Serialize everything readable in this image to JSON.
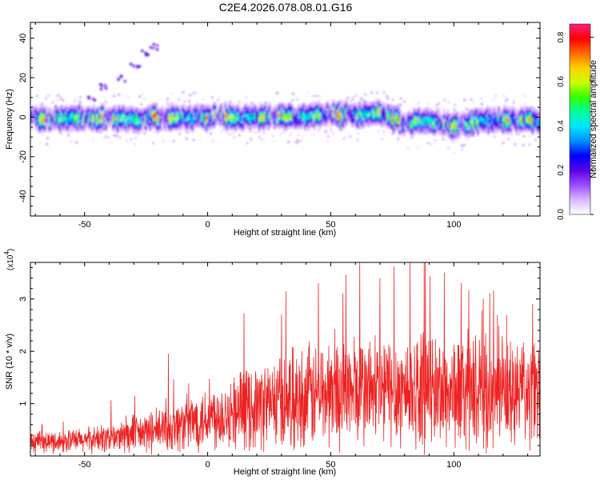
{
  "title": "C2E4.2026.078.08.01.G16",
  "chart_data": [
    {
      "type": "heatmap",
      "xlabel": "Height of straight line (km)",
      "ylabel": "Frequency (Hz)",
      "xlim": [
        -72,
        135
      ],
      "ylim": [
        -50,
        48
      ],
      "xticks": [
        -50,
        0,
        50,
        100
      ],
      "yticks": [
        -40,
        -20,
        0,
        20,
        40
      ],
      "colorbar": {
        "label": "Normalized spectral amplitude",
        "range": [
          0,
          0.86
        ],
        "ticks": [
          "0.0",
          "0.2",
          "0.4",
          "0.6",
          "0.8"
        ],
        "colormap": [
          "#ffffff",
          "#d8b8ff",
          "#9c4dff",
          "#5a00e6",
          "#0000ff",
          "#0090ff",
          "#00e5ff",
          "#00ff9c",
          "#33ff00",
          "#c8ff00",
          "#ffd000",
          "#ff6a00",
          "#ff0000",
          "#ff2080"
        ]
      },
      "ridge": {
        "center_hz": [
          [
            -72,
            0
          ],
          [
            -60,
            -1
          ],
          [
            -45,
            0
          ],
          [
            -30,
            -1
          ],
          [
            -15,
            0
          ],
          [
            0,
            0
          ],
          [
            20,
            0
          ],
          [
            40,
            0
          ],
          [
            55,
            1
          ],
          [
            70,
            2
          ],
          [
            80,
            -3
          ],
          [
            90,
            -1
          ],
          [
            100,
            -5
          ],
          [
            110,
            -2
          ],
          [
            120,
            -1
          ],
          [
            135,
            -2
          ]
        ],
        "halfwidth_hz": 5,
        "peak_amplitude": 0.86
      },
      "secondary_trace": {
        "points": [
          [
            -48,
            10
          ],
          [
            -42,
            16
          ],
          [
            -36,
            20
          ],
          [
            -30,
            27
          ],
          [
            -26,
            33
          ],
          [
            -22,
            36
          ]
        ],
        "amplitude": 0.15
      }
    },
    {
      "type": "line",
      "xlabel": "Height of straight line (km)",
      "ylabel": "SNR (10 * v/v)",
      "exponent_label": "(x10",
      "exponent_power": "4",
      "exponent_close": ")",
      "xlim": [
        -72,
        135
      ],
      "ylim": [
        0,
        3.7
      ],
      "xticks": [
        -50,
        0,
        50,
        100
      ],
      "yticks": [
        1,
        2,
        3
      ],
      "color": "#ee2222",
      "envelope": {
        "x": [
          -72,
          -60,
          -50,
          -40,
          -30,
          -20,
          -10,
          0,
          10,
          20,
          30,
          40,
          50,
          60,
          70,
          80,
          90,
          100,
          110,
          120,
          135
        ],
        "mean": [
          0.25,
          0.28,
          0.3,
          0.34,
          0.4,
          0.48,
          0.6,
          0.75,
          0.85,
          0.95,
          1.05,
          1.12,
          1.2,
          1.25,
          1.25,
          1.28,
          1.25,
          1.22,
          1.2,
          1.18,
          1.15
        ],
        "spread": [
          0.2,
          0.22,
          0.25,
          0.3,
          0.38,
          0.45,
          0.55,
          0.65,
          0.75,
          0.85,
          0.95,
          1.05,
          1.1,
          1.15,
          1.15,
          1.15,
          1.15,
          1.15,
          1.15,
          1.1,
          1.1
        ]
      },
      "spikes": [
        [
          -16,
          1.95
        ],
        [
          30,
          2.7
        ],
        [
          45,
          3.3
        ],
        [
          55,
          3.1
        ],
        [
          70,
          3.4
        ],
        [
          88,
          3.7
        ],
        [
          103,
          3.3
        ],
        [
          112,
          3.0
        ],
        [
          132,
          2.9
        ]
      ]
    }
  ]
}
